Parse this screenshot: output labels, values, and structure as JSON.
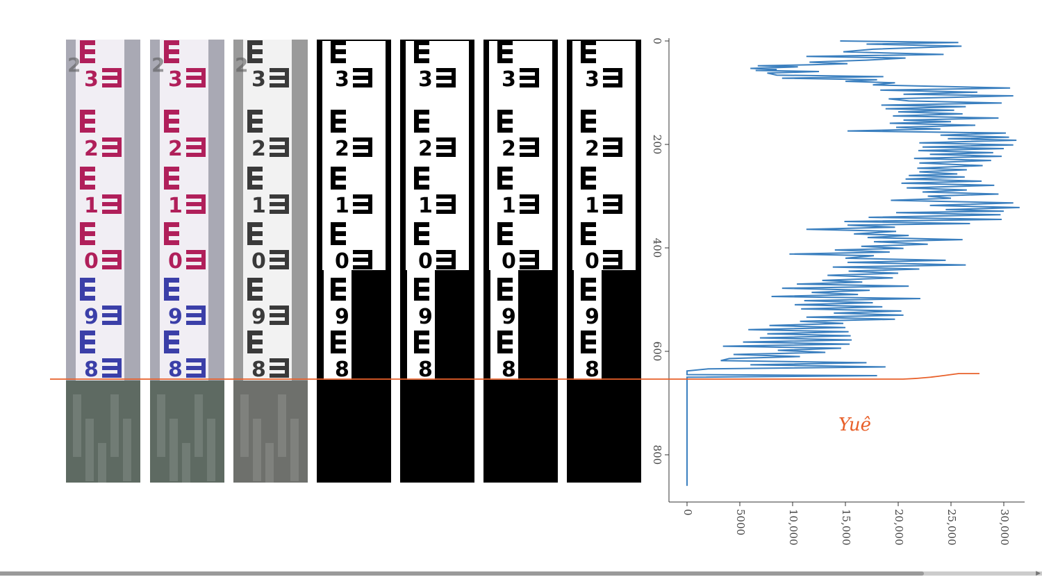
{
  "panels": [
    {
      "name": "panel-color-original",
      "style": "color",
      "labels": [
        "3",
        "2",
        "1",
        "0",
        "9",
        "8"
      ],
      "side_text": "2"
    },
    {
      "name": "panel-color-enhanced",
      "style": "color",
      "labels": [
        "3",
        "2",
        "1",
        "0",
        "9",
        "8"
      ],
      "side_text": "2"
    },
    {
      "name": "panel-grayscale",
      "style": "gray",
      "labels": [
        "3",
        "2",
        "1",
        "0",
        "9",
        "8"
      ],
      "side_text": "2"
    },
    {
      "name": "panel-binary-1",
      "style": "binary",
      "labels": [
        "3",
        "2",
        "1",
        "0",
        "9",
        "8"
      ]
    },
    {
      "name": "panel-binary-2",
      "style": "binary",
      "labels": [
        "3",
        "2",
        "1",
        "0",
        "9",
        "8"
      ]
    },
    {
      "name": "panel-binary-3",
      "style": "binary",
      "labels": [
        "3",
        "2",
        "1",
        "0",
        "9",
        "8"
      ]
    },
    {
      "name": "panel-binary-4",
      "style": "binary",
      "labels": [
        "3",
        "2",
        "1",
        "0",
        "9",
        "8"
      ]
    }
  ],
  "annotation": {
    "text": "Yuê",
    "color": "#e8602a"
  },
  "chart_data": {
    "type": "line",
    "orientation": "horizontal-profile",
    "title": "",
    "xlabel": "",
    "ylabel": "",
    "x_ticks": [
      "0",
      "5000",
      "10,000",
      "15,000",
      "20,000",
      "25,000",
      "30,000"
    ],
    "y_ticks": [
      "0",
      "200",
      "400",
      "600",
      "800"
    ],
    "xlim": [
      0,
      32000
    ],
    "ylim": [
      0,
      880
    ],
    "y_inverted": true,
    "grid": false,
    "series": [
      {
        "color": "#3a7fbf",
        "points": [
          [
            14500,
            0
          ],
          [
            25700,
            3
          ],
          [
            17000,
            6
          ],
          [
            26000,
            10
          ],
          [
            17600,
            16
          ],
          [
            14800,
            21
          ],
          [
            24300,
            26
          ],
          [
            11300,
            30
          ],
          [
            20700,
            33
          ],
          [
            17000,
            37
          ],
          [
            11600,
            41
          ],
          [
            15200,
            44
          ],
          [
            11800,
            46
          ],
          [
            6700,
            48
          ],
          [
            10500,
            50
          ],
          [
            6000,
            53
          ],
          [
            8500,
            55
          ],
          [
            6500,
            57
          ],
          [
            12500,
            59
          ],
          [
            7600,
            62
          ],
          [
            8500,
            66
          ],
          [
            18600,
            69
          ],
          [
            9000,
            72
          ],
          [
            18000,
            75
          ],
          [
            15000,
            78
          ],
          [
            19700,
            81
          ],
          [
            17600,
            85
          ],
          [
            30600,
            91
          ],
          [
            18300,
            95
          ],
          [
            27500,
            99
          ],
          [
            20500,
            103
          ],
          [
            30900,
            106
          ],
          [
            19100,
            112
          ],
          [
            21000,
            116
          ],
          [
            29800,
            120
          ],
          [
            18400,
            124
          ],
          [
            26400,
            127
          ],
          [
            18800,
            131
          ],
          [
            25300,
            134
          ],
          [
            20000,
            137
          ],
          [
            26100,
            141
          ],
          [
            19500,
            145
          ],
          [
            29500,
            149
          ],
          [
            20500,
            153
          ],
          [
            25000,
            156
          ],
          [
            19200,
            159
          ],
          [
            27300,
            163
          ],
          [
            19800,
            167
          ],
          [
            24000,
            170
          ],
          [
            15200,
            174
          ],
          [
            30200,
            178
          ],
          [
            24000,
            182
          ],
          [
            30500,
            186
          ],
          [
            24700,
            189
          ],
          [
            31200,
            192
          ],
          [
            22000,
            197
          ],
          [
            30900,
            201
          ],
          [
            22300,
            205
          ],
          [
            30000,
            208
          ],
          [
            21900,
            212
          ],
          [
            29000,
            216
          ],
          [
            23000,
            219
          ],
          [
            29800,
            223
          ],
          [
            21500,
            227
          ],
          [
            28800,
            231
          ],
          [
            22000,
            236
          ],
          [
            28000,
            241
          ],
          [
            21800,
            246
          ],
          [
            26500,
            249
          ],
          [
            22000,
            253
          ],
          [
            25600,
            257
          ],
          [
            21000,
            260
          ],
          [
            26300,
            263
          ],
          [
            20700,
            267
          ],
          [
            27900,
            271
          ],
          [
            20300,
            275
          ],
          [
            29100,
            279
          ],
          [
            20800,
            284
          ],
          [
            26500,
            288
          ],
          [
            22300,
            292
          ],
          [
            29500,
            296
          ],
          [
            22800,
            300
          ],
          [
            25000,
            304
          ],
          [
            19300,
            308
          ],
          [
            30900,
            313
          ],
          [
            23000,
            318
          ],
          [
            31500,
            322
          ],
          [
            24500,
            326
          ],
          [
            30000,
            329
          ],
          [
            19800,
            332
          ],
          [
            29700,
            336
          ],
          [
            17200,
            341
          ],
          [
            29800,
            345
          ],
          [
            14900,
            349
          ],
          [
            26800,
            353
          ],
          [
            15200,
            356
          ],
          [
            19700,
            360
          ],
          [
            11300,
            364
          ],
          [
            19800,
            368
          ],
          [
            15800,
            373
          ],
          [
            21000,
            376
          ],
          [
            17100,
            380
          ],
          [
            26100,
            384
          ],
          [
            17700,
            388
          ],
          [
            22800,
            393
          ],
          [
            16500,
            397
          ],
          [
            20500,
            401
          ],
          [
            14000,
            404
          ],
          [
            19200,
            408
          ],
          [
            9700,
            412
          ],
          [
            17700,
            415
          ],
          [
            15000,
            420
          ],
          [
            24500,
            424
          ],
          [
            15200,
            428
          ],
          [
            26400,
            433
          ],
          [
            13800,
            437
          ],
          [
            22000,
            441
          ],
          [
            15300,
            445
          ],
          [
            20000,
            449
          ],
          [
            13300,
            453
          ],
          [
            19500,
            458
          ],
          [
            12800,
            463
          ],
          [
            16600,
            466
          ],
          [
            10400,
            470
          ],
          [
            21000,
            474
          ],
          [
            9000,
            478
          ],
          [
            17300,
            482
          ],
          [
            11800,
            486
          ],
          [
            16200,
            490
          ],
          [
            8000,
            494
          ],
          [
            22100,
            498
          ],
          [
            11100,
            502
          ],
          [
            17600,
            506
          ],
          [
            10200,
            510
          ],
          [
            18500,
            514
          ],
          [
            10800,
            518
          ],
          [
            20300,
            522
          ],
          [
            13900,
            526
          ],
          [
            20500,
            530
          ],
          [
            11300,
            534
          ],
          [
            19700,
            538
          ],
          [
            10700,
            542
          ],
          [
            14800,
            546
          ],
          [
            7800,
            550
          ],
          [
            15000,
            554
          ],
          [
            5800,
            558
          ],
          [
            15300,
            562
          ],
          [
            7600,
            566
          ],
          [
            15500,
            570
          ],
          [
            6900,
            574
          ],
          [
            15600,
            578
          ],
          [
            5300,
            582
          ],
          [
            15400,
            586
          ],
          [
            3400,
            590
          ],
          [
            14600,
            594
          ],
          [
            8600,
            598
          ],
          [
            13100,
            602
          ],
          [
            4400,
            606
          ],
          [
            10700,
            610
          ],
          [
            4000,
            614
          ],
          [
            3200,
            618
          ],
          [
            17000,
            622
          ],
          [
            6000,
            626
          ],
          [
            18800,
            630
          ],
          [
            2000,
            634
          ],
          [
            0,
            638
          ],
          [
            0,
            645
          ],
          [
            18000,
            647
          ],
          [
            0,
            650
          ],
          [
            0,
            660
          ],
          [
            0,
            700
          ],
          [
            0,
            760
          ],
          [
            0,
            820
          ],
          [
            0,
            860
          ]
        ]
      }
    ]
  }
}
